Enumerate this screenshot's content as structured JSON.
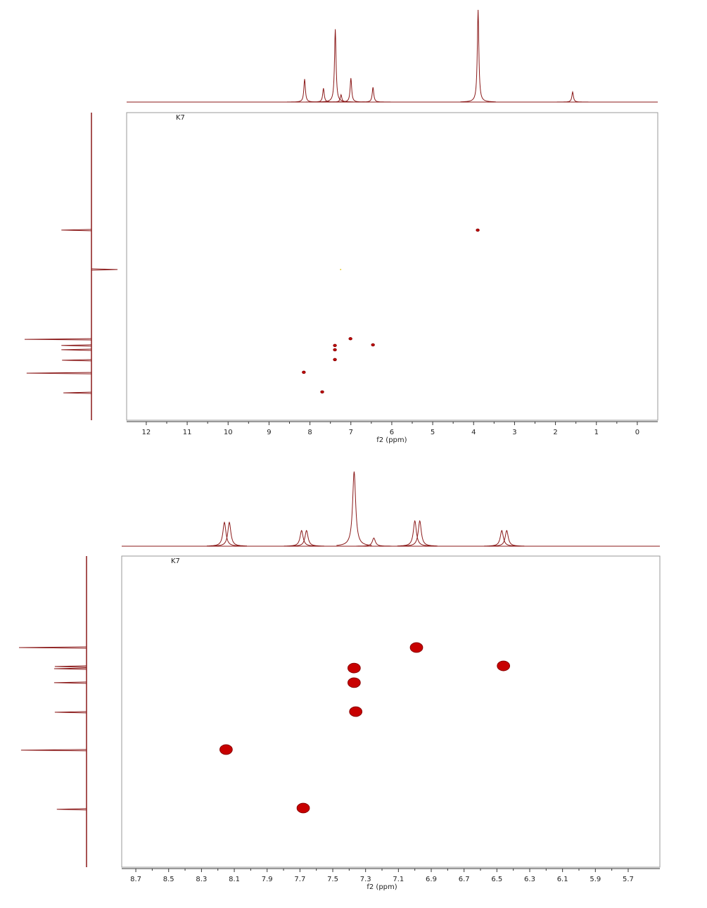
{
  "chart_data": [
    {
      "type": "scatter",
      "label": "K7",
      "x_label": "f2 (ppm)",
      "xlim": [
        12.48,
        -0.5
      ],
      "xticks": [
        12,
        11,
        10,
        9,
        8,
        7,
        6,
        5,
        4,
        3,
        2,
        1,
        0
      ],
      "ylim": [
        100,
        0
      ],
      "x": [
        3.9,
        7.25,
        7.01,
        6.46,
        7.39,
        7.39,
        7.39,
        8.15,
        7.7
      ],
      "values": [
        38.2,
        51.0,
        73.5,
        75.5,
        75.7,
        77.1,
        80.3,
        84.4,
        90.8
      ],
      "colors": [
        "#c80000",
        "#e0c000",
        "#c80000",
        "#c80000",
        "#c80000",
        "#c80000",
        "#c80000",
        "#c80000",
        "#c80000"
      ],
      "line_color": "#8b1a1a",
      "top_projection": {
        "x": [
          8.13,
          7.67,
          7.38,
          7.24,
          7.0,
          6.46,
          3.89,
          1.58
        ],
        "heights": [
          25,
          15,
          79,
          8,
          26,
          16,
          100,
          11
        ]
      },
      "side_projection": {
        "y": [
          38.2,
          51.0,
          73.7,
          75.7,
          77.1,
          80.5,
          84.7,
          91.1
        ],
        "heights": [
          45,
          -39,
          100,
          45,
          45,
          44,
          97,
          42
        ]
      }
    },
    {
      "type": "scatter",
      "label": "K7",
      "x_label": "f2 (ppm)",
      "xlim": [
        8.786,
        5.507
      ],
      "xticks": [
        8.7,
        8.5,
        8.3,
        8.1,
        7.9,
        7.7,
        7.5,
        7.3,
        7.1,
        6.9,
        6.7,
        6.5,
        6.3,
        6.1,
        5.9,
        5.7
      ],
      "ylim": [
        100,
        0
      ],
      "x": [
        6.99,
        6.46,
        7.37,
        7.37,
        7.36,
        8.15,
        7.68
      ],
      "values": [
        29.4,
        35.3,
        36.0,
        40.7,
        50.0,
        62.2,
        81.0
      ],
      "colors": [
        "#c80000",
        "#c80000",
        "#c80000",
        "#c80000",
        "#c80000",
        "#c80000",
        "#c80000"
      ],
      "line_color": "#8b1a1a",
      "top_projection": {
        "x": [
          8.16,
          8.13,
          7.69,
          7.66,
          7.37,
          7.25,
          7.0,
          6.97,
          6.47,
          6.44
        ],
        "heights": [
          32,
          32,
          21,
          21,
          100,
          11,
          34,
          34,
          21,
          21
        ]
      },
      "side_projection": {
        "y": [
          29.4,
          35.5,
          36.2,
          40.7,
          50.2,
          62.4,
          81.4
        ],
        "heights": [
          100,
          47,
          48,
          48,
          47,
          97,
          44
        ]
      }
    }
  ]
}
